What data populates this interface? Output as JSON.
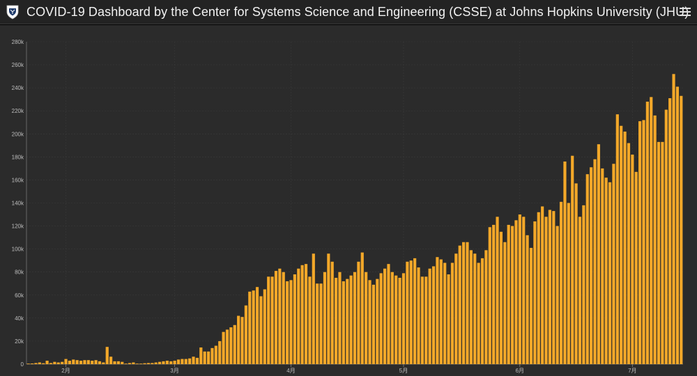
{
  "header": {
    "title": "COVID-19 Dashboard by the Center for Systems Science and Engineering (CSSE) at Johns Hopkins University (JHU)",
    "logo_icon": "jhu-shield-icon",
    "menu_icon": "hamburger-menu-icon"
  },
  "colors": {
    "bar": "#f3a829",
    "background": "#2b2b2b",
    "header": "#232323",
    "grid": "#3a3a3a"
  },
  "chart_data": {
    "type": "bar",
    "title": "",
    "xlabel": "",
    "ylabel": "",
    "ylim": [
      0,
      280000
    ],
    "yticks": [
      "0",
      "20k",
      "40k",
      "60k",
      "80k",
      "100k",
      "120k",
      "140k",
      "160k",
      "180k",
      "200k",
      "220k",
      "240k",
      "260k",
      "280k"
    ],
    "xticks": [
      {
        "label": "2月",
        "index": 10
      },
      {
        "label": "3月",
        "index": 39
      },
      {
        "label": "4月",
        "index": 70
      },
      {
        "label": "5月",
        "index": 100
      },
      {
        "label": "6月",
        "index": 131
      },
      {
        "label": "7月",
        "index": 161
      }
    ],
    "grid": true,
    "values": [
      500,
      600,
      1000,
      1500,
      800,
      3000,
      1000,
      2000,
      1500,
      2000,
      4500,
      3000,
      4000,
      3500,
      3000,
      3500,
      3500,
      3000,
      3500,
      2500,
      1500,
      15000,
      6500,
      2500,
      2500,
      2000,
      500,
      1000,
      1500,
      500,
      500,
      800,
      1000,
      1000,
      1500,
      2000,
      2500,
      3000,
      2500,
      3000,
      4000,
      4500,
      4500,
      5000,
      6500,
      5500,
      14500,
      11000,
      11000,
      14000,
      16000,
      20000,
      28000,
      30000,
      32000,
      34000,
      42000,
      41000,
      51000,
      63000,
      64000,
      67000,
      59000,
      65000,
      76000,
      76000,
      81000,
      83000,
      80000,
      72000,
      73000,
      78000,
      83000,
      86000,
      87000,
      76000,
      96000,
      70000,
      70000,
      80000,
      96000,
      89000,
      75000,
      80000,
      72000,
      74000,
      77000,
      80000,
      89000,
      97000,
      80000,
      73000,
      69000,
      74000,
      79000,
      83000,
      87000,
      80000,
      77000,
      75000,
      79000,
      89000,
      90000,
      92000,
      84000,
      76000,
      76000,
      83000,
      85000,
      93000,
      91000,
      88000,
      78000,
      88000,
      96000,
      103000,
      106000,
      106000,
      99000,
      96000,
      88000,
      92000,
      99000,
      119000,
      121000,
      128000,
      115000,
      106000,
      121000,
      120000,
      125000,
      130000,
      128000,
      112000,
      101000,
      124000,
      132000,
      137000,
      128000,
      134000,
      133000,
      120000,
      141000,
      176000,
      140000,
      181000,
      157000,
      128000,
      138000,
      165000,
      171000,
      178000,
      191000,
      170000,
      162000,
      158000,
      174000,
      217000,
      207000,
      202000,
      192000,
      182000,
      167000,
      211000,
      212000,
      228000,
      232000,
      216000,
      193000,
      193000,
      221000,
      231000,
      252000,
      241000,
      233000
    ]
  }
}
